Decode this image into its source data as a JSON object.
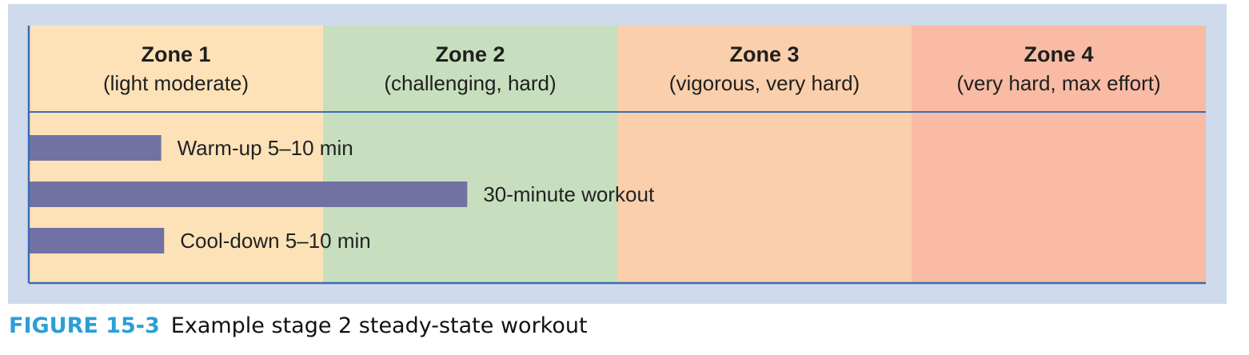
{
  "figure": {
    "number": "FIGURE 15-3",
    "caption": "Example stage 2 steady-state workout"
  },
  "chart_data": {
    "type": "bar",
    "orientation": "horizontal",
    "zones": [
      {
        "name": "Zone 1",
        "description": "(light moderate)",
        "color": "#fde2b8"
      },
      {
        "name": "Zone 2",
        "description": "(challenging, hard)",
        "color": "#c7dfbe"
      },
      {
        "name": "Zone 3",
        "description": "(vigorous, very hard)",
        "color": "#fccfac"
      },
      {
        "name": "Zone 4",
        "description": "(very hard, max effort)",
        "color": "#f9bba4"
      }
    ],
    "bars": [
      {
        "label": "Warm-up 5–10 min",
        "zone_extent": 0.45
      },
      {
        "label": "30-minute workout",
        "zone_extent": 1.49
      },
      {
        "label": "Cool-down 5–10 min",
        "zone_extent": 0.46
      }
    ],
    "xlim": [
      0,
      4
    ],
    "bar_color": "#7172a3",
    "axis_color": "#3a6db5",
    "legend": "none",
    "grid": false
  }
}
